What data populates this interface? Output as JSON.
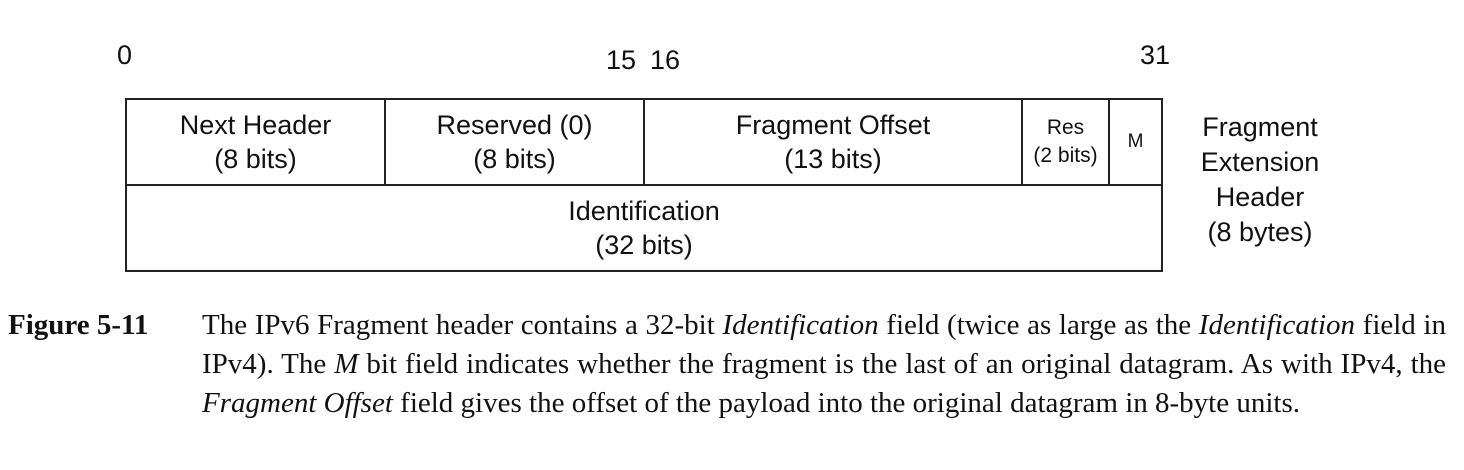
{
  "bit_numbers": {
    "b0": "0",
    "b15": "15",
    "b16": "16",
    "b31": "31"
  },
  "row1": {
    "next_header": {
      "name": "Next Header",
      "size": "(8 bits)"
    },
    "reserved": {
      "name": "Reserved (0)",
      "size": "(8 bits)"
    },
    "fragment_offset": {
      "name": "Fragment Offset",
      "size": "(13 bits)"
    },
    "res": {
      "name": "Res",
      "size": "(2 bits)"
    },
    "m": {
      "name": "M"
    }
  },
  "row2": {
    "identification": {
      "name": "Identification",
      "size": "(32 bits)"
    }
  },
  "side_label": {
    "l1": "Fragment",
    "l2": "Extension",
    "l3": "Header",
    "l4": "(8 bytes)"
  },
  "caption": {
    "label": "Figure 5-11",
    "p1": "The IPv6 Fragment header contains a 32-bit ",
    "i1": "Identification",
    "p2": " field (twice as large as the ",
    "i2": "Identification",
    "p3": " field in IPv4). The ",
    "i3": "M",
    "p4": " bit field indicates whether the fragment is the last of an original datagram. As with IPv4, the ",
    "i4": "Fragment Offset",
    "p5": " field gives the offset of the payload into the original datagram in 8-byte units."
  }
}
